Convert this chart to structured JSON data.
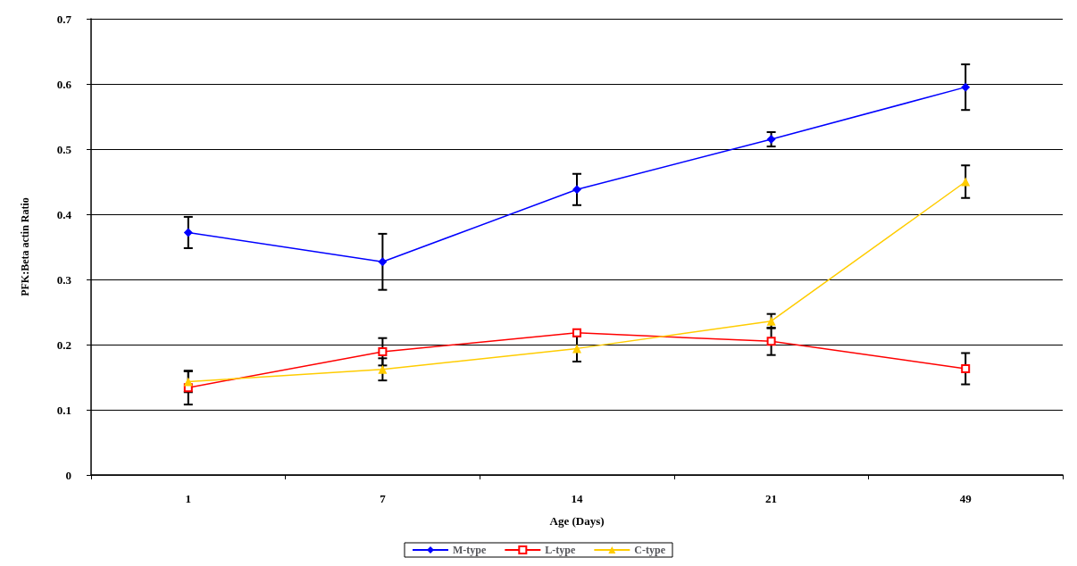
{
  "chart_data": {
    "type": "line",
    "xlabel": "Age (Days)",
    "ylabel": "PFK:Beta actin Ratio",
    "categories": [
      "1",
      "7",
      "14",
      "21",
      "49"
    ],
    "series": [
      {
        "name": "M-type",
        "color": "#0000ff",
        "marker": "diamond",
        "values": [
          0.372,
          0.327,
          0.438,
          0.515,
          0.595
        ],
        "errors": [
          0.024,
          0.043,
          0.024,
          0.011,
          0.035
        ]
      },
      {
        "name": "L-type",
        "color": "#ff0000",
        "marker": "square",
        "values": [
          0.134,
          0.189,
          0.218,
          0.205,
          0.163
        ],
        "errors": [
          0.026,
          0.021,
          0.005,
          0.021,
          0.024
        ]
      },
      {
        "name": "C-type",
        "color": "#ffcc00",
        "marker": "triangle",
        "values": [
          0.143,
          0.162,
          0.194,
          0.236,
          0.45
        ],
        "errors": [
          0.016,
          0.017,
          0.02,
          0.011,
          0.025
        ]
      }
    ],
    "ylim": [
      0,
      0.7
    ],
    "yticks": [
      0,
      0.1,
      0.2,
      0.3,
      0.4,
      0.5,
      0.6,
      0.7
    ],
    "grid": "y",
    "legend": "bottom"
  }
}
